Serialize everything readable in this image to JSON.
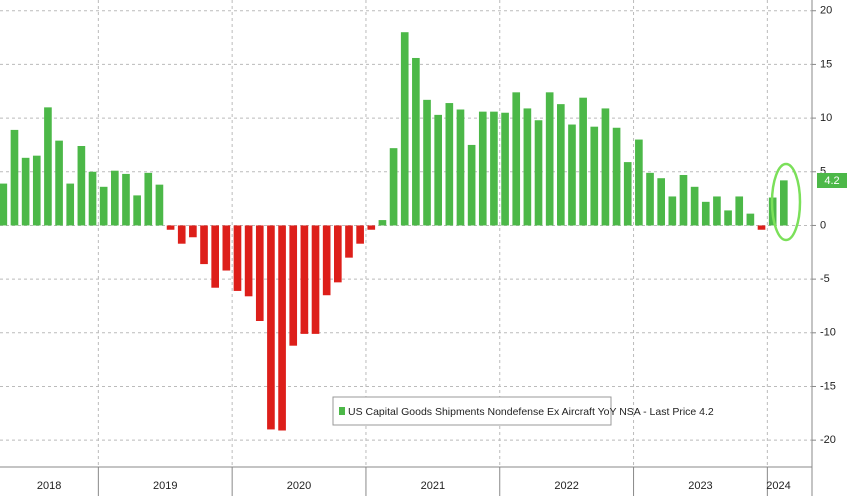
{
  "chart_data": {
    "type": "bar",
    "legend": "US Capital Goods Shipments Nondefense Ex Aircraft YoY NSA - Last Price 4.2",
    "last_price": 4.2,
    "years": [
      "2018",
      "2019",
      "2020",
      "2021",
      "2022",
      "2023",
      "2024"
    ],
    "values": [
      3.9,
      8.9,
      6.3,
      6.5,
      11.0,
      7.9,
      3.9,
      7.4,
      5.0,
      3.6,
      5.1,
      4.8,
      2.8,
      4.9,
      3.8,
      -0.4,
      -1.7,
      -1.1,
      -3.6,
      -5.8,
      -4.2,
      -6.1,
      -6.6,
      -8.9,
      -19.0,
      -19.1,
      -11.2,
      -10.1,
      -10.1,
      -6.5,
      -5.3,
      -3.0,
      -1.7,
      -0.4,
      0.5,
      7.2,
      18.0,
      15.6,
      11.7,
      10.3,
      11.4,
      10.8,
      7.5,
      10.6,
      10.6,
      10.5,
      12.4,
      10.9,
      9.8,
      12.4,
      11.3,
      9.4,
      11.9,
      9.2,
      10.9,
      9.1,
      5.9,
      8.0,
      4.9,
      4.4,
      2.7,
      4.7,
      3.6,
      2.2,
      2.7,
      1.4,
      2.7,
      1.1,
      -0.4,
      2.6,
      4.2
    ],
    "positive_color": "#4cb848",
    "negative_color": "#dd1f1a",
    "ylim": [
      -22.5,
      21
    ],
    "yticks": [
      -20,
      -15,
      -10,
      -5,
      0,
      5,
      10,
      15,
      20
    ],
    "grid": true
  }
}
